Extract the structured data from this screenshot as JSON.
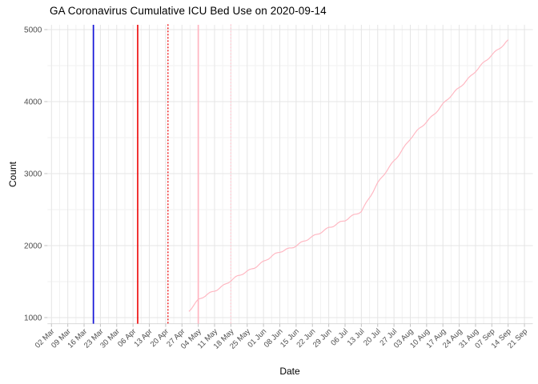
{
  "chart": {
    "title": "GA Coronavirus Cumulative ICU Bed Use on 2020-09-14",
    "xlabel": "Date",
    "ylabel": "Count"
  },
  "chart_data": {
    "type": "line",
    "title": "GA Coronavirus Cumulative ICU Bed Use on 2020-09-14",
    "xlabel": "Date",
    "ylabel": "Count",
    "ylim": [
      1000,
      5000
    ],
    "y_ticks": [
      1000,
      2000,
      3000,
      4000,
      5000
    ],
    "x_tick_start_date": "2020-03-02",
    "x_tick_interval_days": 7,
    "x_tick_labels": [
      "02 Mar",
      "09 Mar",
      "16 Mar",
      "23 Mar",
      "30 Mar",
      "06 Apr",
      "13 Apr",
      "20 Apr",
      "27 Apr",
      "04 May",
      "11 May",
      "18 May",
      "25 May",
      "01 Jun",
      "08 Jun",
      "15 Jun",
      "22 Jun",
      "29 Jun",
      "06 Jul",
      "13 Jul",
      "20 Jul",
      "27 Jul",
      "03 Aug",
      "10 Aug",
      "17 Aug",
      "24 Aug",
      "31 Aug",
      "07 Sep",
      "14 Sep",
      "21 Sep"
    ],
    "grid": "major + minor, light gray on white, legend none",
    "series": [
      {
        "name": "cumulative-icu-bed-use",
        "color": "#ffb6c1",
        "points": [
          {
            "date": "2020-04-30",
            "value": 1100
          },
          {
            "date": "2020-05-04",
            "value": 1240
          },
          {
            "date": "2020-05-11",
            "value": 1375
          },
          {
            "date": "2020-05-18",
            "value": 1515
          },
          {
            "date": "2020-05-25",
            "value": 1640
          },
          {
            "date": "2020-06-01",
            "value": 1780
          },
          {
            "date": "2020-06-08",
            "value": 1910
          },
          {
            "date": "2020-06-15",
            "value": 2005
          },
          {
            "date": "2020-06-22",
            "value": 2115
          },
          {
            "date": "2020-06-29",
            "value": 2255
          },
          {
            "date": "2020-07-06",
            "value": 2345
          },
          {
            "date": "2020-07-13",
            "value": 2485
          },
          {
            "date": "2020-07-20",
            "value": 2860
          },
          {
            "date": "2020-07-27",
            "value": 3180
          },
          {
            "date": "2020-08-03",
            "value": 3485
          },
          {
            "date": "2020-08-10",
            "value": 3720
          },
          {
            "date": "2020-08-17",
            "value": 3965
          },
          {
            "date": "2020-08-24",
            "value": 4190
          },
          {
            "date": "2020-08-31",
            "value": 4430
          },
          {
            "date": "2020-09-07",
            "value": 4640
          },
          {
            "date": "2020-09-14",
            "value": 4860
          }
        ]
      }
    ],
    "reference_lines": [
      {
        "name": "vline-blue-solid",
        "date": "2020-03-20",
        "color": "#1616d9",
        "style": "solid"
      },
      {
        "name": "vline-red-solid",
        "date": "2020-04-08",
        "color": "#ee1111",
        "style": "solid"
      },
      {
        "name": "vline-red-dotted",
        "date": "2020-04-21",
        "color": "#ee1111",
        "style": "dotted"
      },
      {
        "name": "vline-pink-solid",
        "date": "2020-05-04",
        "color": "#ffb6c1",
        "style": "solid"
      },
      {
        "name": "vline-pink-dotted",
        "date": "2020-05-18",
        "color": "#ffccd4",
        "style": "dotted"
      }
    ]
  }
}
